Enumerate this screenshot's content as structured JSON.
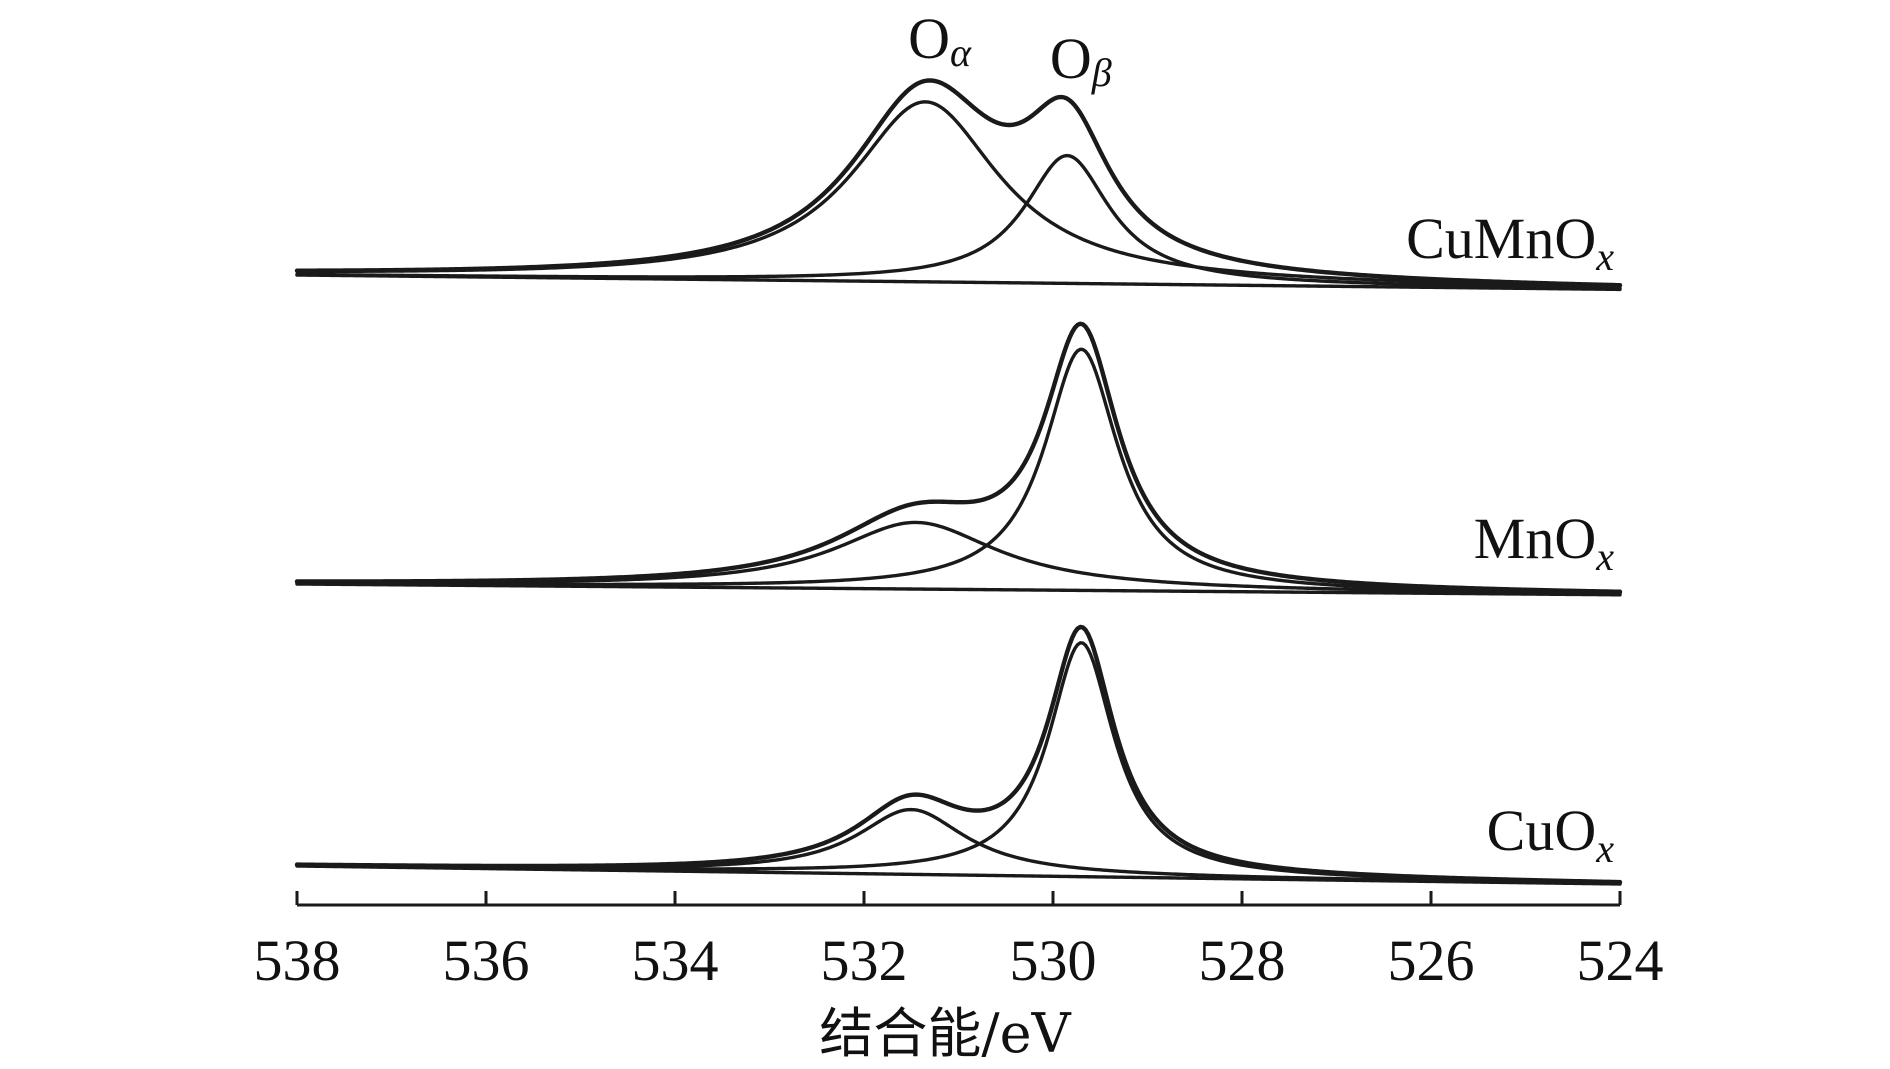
{
  "chart_data": {
    "type": "line",
    "title": "",
    "xlabel": "结合能/eV",
    "ylabel": "",
    "xlim": [
      538,
      524
    ],
    "x_reversed": true,
    "x_ticks": [
      538,
      536,
      534,
      532,
      530,
      528,
      526,
      524
    ],
    "grid": false,
    "legend": "none",
    "annotations": [
      {
        "text": "O",
        "sub": "α",
        "x": 531.3,
        "series": "CuMnOx"
      },
      {
        "text": "O",
        "sub": "β",
        "x": 529.8,
        "series": "CuMnOx"
      }
    ],
    "series": [
      {
        "name": "CuMnOx",
        "label": "CuMnO",
        "label_sub": "x",
        "baseline": [
          [
            538,
            0.0
          ],
          [
            524,
            -0.08
          ]
        ],
        "components": [
          {
            "name": "Oα",
            "center": 531.35,
            "fwhm": 1.9,
            "height": 1.0
          },
          {
            "name": "Oβ",
            "center": 529.85,
            "fwhm": 1.1,
            "height": 0.71
          }
        ],
        "envelope_peak": [
          [
            531.35,
            1.02
          ],
          [
            530.5,
            0.64
          ],
          [
            529.9,
            0.86
          ]
        ]
      },
      {
        "name": "MnOx",
        "label": "MnO",
        "label_sub": "x",
        "baseline": [
          [
            538,
            0.0
          ],
          [
            524,
            -0.06
          ]
        ],
        "components": [
          {
            "name": "Oα",
            "center": 531.45,
            "fwhm": 2.1,
            "height": 0.37
          },
          {
            "name": "Oβ",
            "center": 529.7,
            "fwhm": 0.95,
            "height": 1.34
          }
        ],
        "envelope_peak": [
          [
            531.35,
            0.42
          ],
          [
            530.6,
            0.38
          ],
          [
            529.7,
            1.4
          ]
        ]
      },
      {
        "name": "CuOx",
        "label": "CuO",
        "label_sub": "x",
        "baseline": [
          [
            538,
            0.0
          ],
          [
            524,
            -0.1
          ]
        ],
        "components": [
          {
            "name": "Oα",
            "center": 531.5,
            "fwhm": 1.4,
            "height": 0.36
          },
          {
            "name": "Oβ",
            "center": 529.7,
            "fwhm": 0.85,
            "height": 1.3
          }
        ],
        "envelope_peak": [
          [
            531.45,
            0.39
          ],
          [
            530.7,
            0.2
          ],
          [
            529.7,
            1.32
          ]
        ]
      }
    ]
  }
}
